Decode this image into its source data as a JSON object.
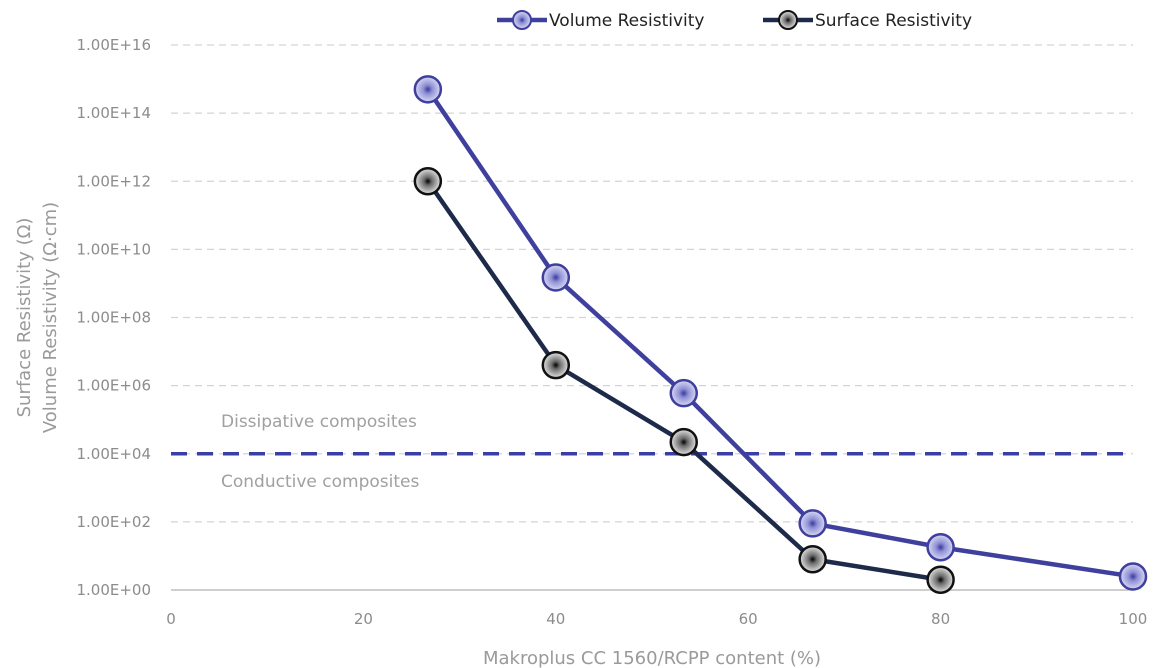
{
  "chart_data": {
    "type": "scatter",
    "x_axis": {
      "label": "Makroplus CC 1560/RCPP content (%)",
      "min": 0,
      "max": 100,
      "ticks": [
        0,
        20,
        40,
        60,
        80,
        100
      ],
      "tick_labels": [
        "0",
        "20",
        "40",
        "60",
        "80",
        "100"
      ]
    },
    "y_axis": {
      "label_lines": [
        "Surface Resistivity (Ω)",
        "Volume Resistivity (Ω·cm)"
      ],
      "scale": "log",
      "min": 1,
      "max": 1e+16,
      "ticks": [
        1,
        100,
        10000,
        1000000,
        100000000,
        10000000000,
        1000000000000,
        100000000000000,
        10000000000000000
      ],
      "tick_labels": [
        "1.00E+00",
        "1.00E+02",
        "1.00E+04",
        "1.00E+06",
        "1.00E+08",
        "1.00E+10",
        "1.00E+12",
        "1.00E+14",
        "1.00E+16"
      ]
    },
    "grid": "horizontal-dashed",
    "legend_position": "top-right",
    "series": [
      {
        "name": "Volume Resistivity",
        "color": "#3f3f9e",
        "marker_fill": "#c5c6ec",
        "points": [
          [
            26.7,
            500000000000000
          ],
          [
            40,
            1500000000
          ],
          [
            53.3,
            600000
          ],
          [
            66.7,
            90
          ],
          [
            80,
            18
          ],
          [
            100,
            2.5
          ]
        ]
      },
      {
        "name": "Surface Resistivity",
        "color": "#1e2a4a",
        "marker_fill": "#d6d6d6",
        "points": [
          [
            26.7,
            1000000000000
          ],
          [
            40,
            4000000
          ],
          [
            53.3,
            22000
          ],
          [
            66.7,
            8
          ],
          [
            80,
            2
          ]
        ]
      }
    ],
    "threshold": {
      "value": 10000,
      "color": "#3a3fa6",
      "label_above": "Dissipative composites",
      "label_below": "Conductive composites"
    }
  }
}
